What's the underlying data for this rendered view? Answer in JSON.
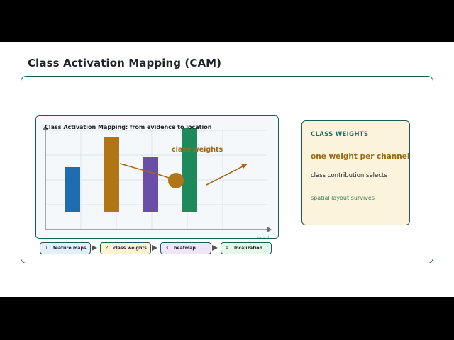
{
  "page": {
    "title": "Class Activation Mapping (CAM)"
  },
  "plot": {
    "caption": "Class Activation Mapping: from evidence to location",
    "axis_label": "input",
    "annotation": "class weights",
    "colors": {
      "bar1": "#1f6db0",
      "bar2": "#b07514",
      "bar3": "#6a4ea8",
      "bar4": "#1e8a5c",
      "arrow": "#a06a1a",
      "grid": "#dde6ea"
    }
  },
  "chart_data": {
    "type": "bar",
    "categories": [
      "",
      "",
      "",
      ""
    ],
    "values": [
      45,
      75,
      55,
      85
    ],
    "ylim": [
      0,
      100
    ],
    "grid": true
  },
  "side": {
    "heading": "CLASS WEIGHTS",
    "emphasis": "one weight per channel",
    "line": "class contribution selects",
    "note": "spatial layout survives"
  },
  "pipeline": [
    {
      "num": "1",
      "label": "feature maps"
    },
    {
      "num": "2",
      "label": "class weights"
    },
    {
      "num": "3",
      "label": "heatmap"
    },
    {
      "num": "4",
      "label": "localization"
    }
  ]
}
